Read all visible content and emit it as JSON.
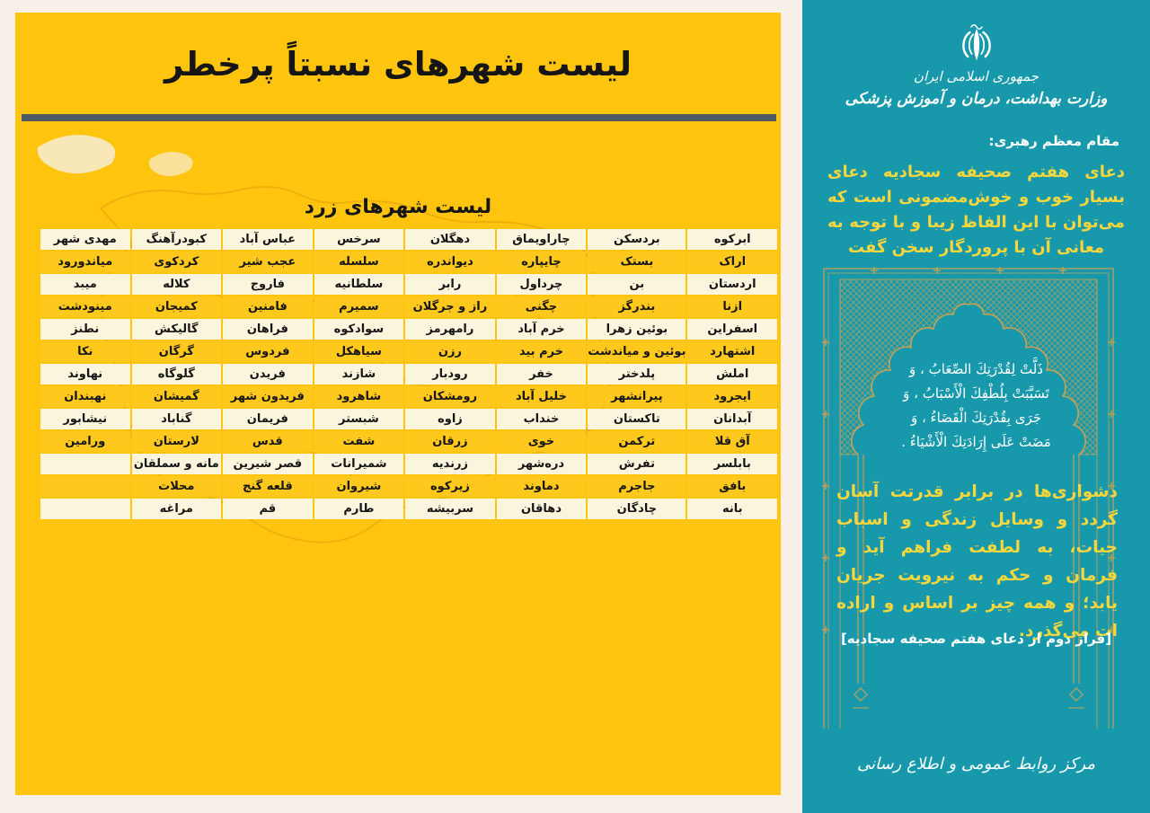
{
  "left_panel": {
    "title": "لیست شهرهای نسبتاً پرخطر",
    "subtitle": "لیست شهرهای زرد",
    "table": {
      "columns": [
        [
          "ابرکوه",
          "اراک",
          "اردستان",
          "ازنا",
          "اسفراین",
          "اشتهارد",
          "املش",
          "ایجرود",
          "آبدانان",
          "آق قلا",
          "بابلسر",
          "بافق",
          "بانه"
        ],
        [
          "بردسکن",
          "بستک",
          "بن",
          "بندرگز",
          "بوئین زهرا",
          "بوئین و میاندشت",
          "پلدختر",
          "پیرانشهر",
          "تاکستان",
          "ترکمن",
          "تفرش",
          "جاجرم",
          "چادگان"
        ],
        [
          "چاراویماق",
          "چایپاره",
          "چرداول",
          "چگنی",
          "خرم آباد",
          "خرم بید",
          "خفر",
          "خلیل آباد",
          "خنداب",
          "خوی",
          "دره‌شهر",
          "دماوند",
          "دهاقان"
        ],
        [
          "دهگلان",
          "دیواندره",
          "رابر",
          "راز و جرگلان",
          "رامهرمز",
          "رزن",
          "رودبار",
          "رومشکان",
          "زاوه",
          "زرقان",
          "زرندیه",
          "زیرکوه",
          "سربیشه"
        ],
        [
          "سرخس",
          "سلسله",
          "سلطانیه",
          "سمیرم",
          "سوادکوه",
          "سیاهکل",
          "شازند",
          "شاهرود",
          "شبستر",
          "شفت",
          "شمیرانات",
          "شیروان",
          "طارم"
        ],
        [
          "عباس آباد",
          "عجب شیر",
          "فاروج",
          "فامنین",
          "فراهان",
          "فردوس",
          "فریدن",
          "فریدون شهر",
          "فریمان",
          "قدس",
          "قصر شیرین",
          "قلعه گنج",
          "قم"
        ],
        [
          "کبودرآهنگ",
          "کردکوی",
          "کلاله",
          "کمیجان",
          "گالیکش",
          "گرگان",
          "گلوگاه",
          "گمیشان",
          "گناباد",
          "لارستان",
          "مانه و سملقان",
          "محلات",
          "مراغه"
        ],
        [
          "مهدی شهر",
          "میاندورود",
          "میبد",
          "مینودشت",
          "نطنز",
          "نکا",
          "نهاوند",
          "نهبندان",
          "نیشابور",
          "ورامین",
          "",
          "",
          ""
        ]
      ]
    }
  },
  "right_panel": {
    "emblem": "iran-coat-of-arms",
    "gov_name": "جمهوری اسلامی ایران",
    "ministry": "وزارت بهداشت، درمان و آموزش پزشکی",
    "leader_label": "مقام معظم رهبری:",
    "leader_quote": "دعای هفتم صحیفه سجادیه دعای بسیار خوب و خوش‌مضمونی است که می‌توان با این الفاظ زیبا و با توجه به معانی آن با پروردگار سخن گفت",
    "arabic_lines": [
      "ذَلَّتْ لِقُدْرَتِكَ الصِّعَابُ ، وَ",
      "تَسَبَّبَتْ بِلُطْفِكَ الْأَسْبَابُ ، وَ",
      "جَرَى بِقُدْرَتِكَ الْقَضَاءُ ، وَ",
      "مَضَتْ عَلَى إِرَادَتِكَ الْأَشْيَاءُ ."
    ],
    "translation": "دشواری‌ها در برابر قدرتت آسان گردد و وسایل زندگی و اسباب حیات، به لطفت فراهم آید و فرمان و حکم به نیرویت جریان یابد؛ و همه چیز بر اساس و اراده ات می‌گذرد.",
    "caption": "[فراز دوم از دعای هفتم صحیفه سجادیه]",
    "footer": "مرکز روابط عمومی و اطلاع رسانی"
  },
  "colors": {
    "page_margin": "#f8efe9",
    "left_background": "#ffc40d",
    "row_cream": "#fcf5dd",
    "row_gold": "#ffc91f",
    "divider": "#4d5a63",
    "city_text": "#161616",
    "right_background": "#1899ab",
    "frame_gold": "#c7a254",
    "accent_text_yellow": "#f5d73d",
    "text_white": "#ffffff"
  }
}
